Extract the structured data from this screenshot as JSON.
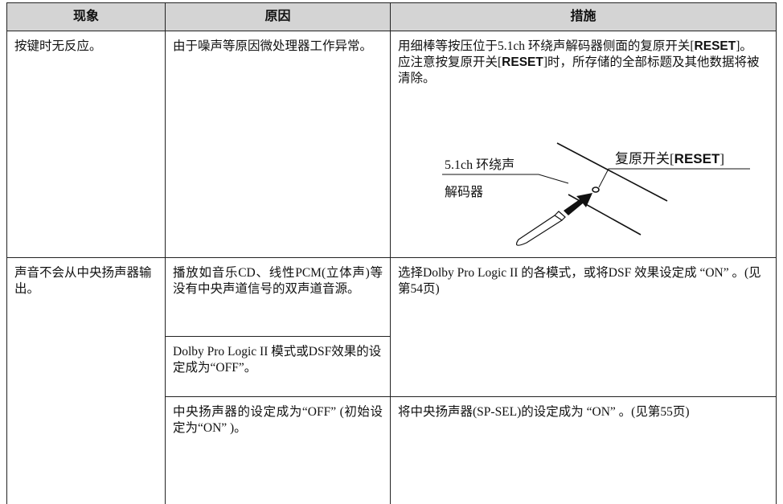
{
  "table": {
    "header": [
      "现象",
      "原因",
      "措施"
    ],
    "rows": [
      {
        "symptom": "按键时无反应。",
        "cause": "由于噪声等原因微处理器工作异常。",
        "remedy": [
          [
            "用细棒等按压位于5.1ch 环绕声解码器侧面的复原开关[",
            "RESET",
            "]。"
          ],
          [
            "应注意按复原开关[",
            "RESET",
            "]时，所存储的全部标题及其他数据将被清除。"
          ]
        ],
        "diagram": {
          "decoder_label": [
            "5.1ch 环绕声",
            "解码器"
          ],
          "switch_label": [
            "复原开关[",
            "RESET",
            "]"
          ]
        }
      },
      {
        "symptom": "声音不会从中央扬声器输出。",
        "causes": [
          "播放如音乐CD、线性PCM(立体声)等没有中央声道信号的双声道音源。",
          "Dolby Pro Logic II 模式或DSF效果的设定成为“OFF”。",
          "中央扬声器的设定成为“OFF” (初始设定为“ON” )。"
        ],
        "remedies": [
          "选择Dolby Pro Logic II 的各模式，或将DSF 效果设定成 “ON” 。(见第54页)",
          "将中央扬声器(SP-SEL)的设定成为 “ON” 。(见第55页)"
        ]
      }
    ]
  }
}
